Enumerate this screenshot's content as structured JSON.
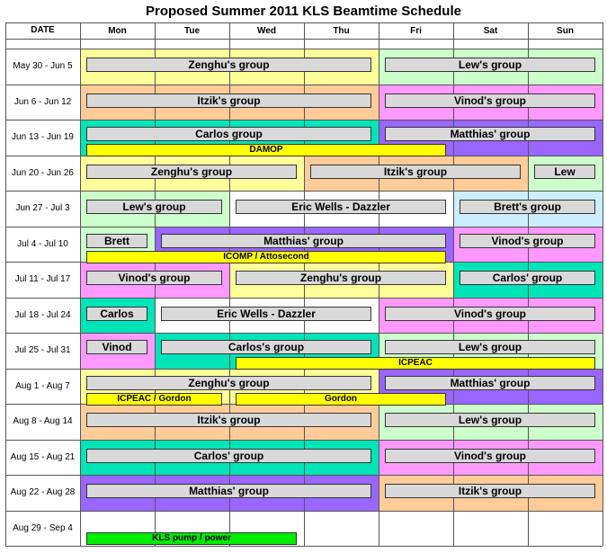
{
  "title": "Proposed Summer 2011 KLS Beamtime Schedule",
  "header": {
    "date": "DATE",
    "days": [
      "Mon",
      "Tue",
      "Wed",
      "Thu",
      "Fri",
      "Sat",
      "Sun"
    ]
  },
  "colors": {
    "yellow_bg": "#ffff99",
    "green_bg": "#ccffcc",
    "orange_bg": "#ffcc99",
    "pink_bg": "#ff99ff",
    "teal_bg": "#00e5b8",
    "purple_bg": "#9966ff",
    "lightblue_bg": "#cceeff",
    "bar_gray": "#d9d9d9",
    "bar_yellow": "#ffff00",
    "bar_green": "#00ee00"
  },
  "rows": [
    {
      "label": "May 30 - Jun 5",
      "bgs": [
        {
          "from": 0,
          "to": 4,
          "color": "yellow_bg"
        },
        {
          "from": 4,
          "to": 7,
          "color": "green_bg"
        }
      ],
      "bars": [
        {
          "text": "Zenghu's group",
          "from": 0,
          "to": 4,
          "line": 0,
          "kind": "gray"
        },
        {
          "text": "Lew's group",
          "from": 4,
          "to": 7,
          "line": 0,
          "kind": "gray"
        }
      ]
    },
    {
      "label": "Jun 6 - Jun 12",
      "bgs": [
        {
          "from": 0,
          "to": 4,
          "color": "orange_bg"
        },
        {
          "from": 4,
          "to": 7,
          "color": "pink_bg"
        }
      ],
      "bars": [
        {
          "text": "Itzik's group",
          "from": 0,
          "to": 4,
          "line": 0,
          "kind": "gray"
        },
        {
          "text": "Vinod's group",
          "from": 4,
          "to": 7,
          "line": 0,
          "kind": "gray"
        }
      ]
    },
    {
      "label": "Jun 13 - Jun 19",
      "bgs": [
        {
          "from": 0,
          "to": 4,
          "color": "teal_bg"
        },
        {
          "from": 4,
          "to": 7,
          "color": "purple_bg"
        }
      ],
      "bars": [
        {
          "text": "Carlos group",
          "from": 0,
          "to": 4,
          "line": 0,
          "kind": "gray"
        },
        {
          "text": "Matthias' group",
          "from": 4,
          "to": 7,
          "line": 0,
          "kind": "gray"
        },
        {
          "text": "DAMOP",
          "from": 0,
          "to": 5,
          "line": 1,
          "kind": "yellow"
        }
      ]
    },
    {
      "label": "Jun 20 - Jun 26",
      "bgs": [
        {
          "from": 0,
          "to": 3,
          "color": "yellow_bg"
        },
        {
          "from": 3,
          "to": 6,
          "color": "orange_bg"
        },
        {
          "from": 6,
          "to": 7,
          "color": "green_bg"
        }
      ],
      "bars": [
        {
          "text": "Zenghu's group",
          "from": 0,
          "to": 3,
          "line": 0,
          "kind": "gray"
        },
        {
          "text": "Itzik's group",
          "from": 3,
          "to": 6,
          "line": 0,
          "kind": "gray"
        },
        {
          "text": "Lew",
          "from": 6,
          "to": 7,
          "line": 0,
          "kind": "gray"
        }
      ]
    },
    {
      "label": "Jun 27 - Jul 3",
      "bgs": [
        {
          "from": 0,
          "to": 2,
          "color": "green_bg"
        },
        {
          "from": 2,
          "to": 5,
          "color": "white"
        },
        {
          "from": 5,
          "to": 7,
          "color": "lightblue_bg"
        }
      ],
      "bars": [
        {
          "text": "Lew's group",
          "from": 0,
          "to": 2,
          "line": 0,
          "kind": "gray"
        },
        {
          "text": "Eric Wells - Dazzler",
          "from": 2,
          "to": 5,
          "line": 0,
          "kind": "gray"
        },
        {
          "text": "Brett's group",
          "from": 5,
          "to": 7,
          "line": 0,
          "kind": "gray"
        }
      ]
    },
    {
      "label": "Jul 4 - Jul 10",
      "bgs": [
        {
          "from": 0,
          "to": 1,
          "color": "green_bg"
        },
        {
          "from": 1,
          "to": 5,
          "color": "purple_bg"
        },
        {
          "from": 5,
          "to": 7,
          "color": "pink_bg"
        }
      ],
      "bars": [
        {
          "text": "Brett",
          "from": 0,
          "to": 1,
          "line": 0,
          "kind": "gray"
        },
        {
          "text": "Matthias' group",
          "from": 1,
          "to": 5,
          "line": 0,
          "kind": "gray"
        },
        {
          "text": "Vinod's group",
          "from": 5,
          "to": 7,
          "line": 0,
          "kind": "gray"
        },
        {
          "text": "ICOMP / Attosecond",
          "from": 0,
          "to": 5,
          "line": 1,
          "kind": "yellow"
        }
      ]
    },
    {
      "label": "Jul 11 - Jul 17",
      "bgs": [
        {
          "from": 0,
          "to": 2,
          "color": "pink_bg"
        },
        {
          "from": 2,
          "to": 5,
          "color": "yellow_bg"
        },
        {
          "from": 5,
          "to": 7,
          "color": "teal_bg"
        }
      ],
      "bars": [
        {
          "text": "Vinod's group",
          "from": 0,
          "to": 2,
          "line": 0,
          "kind": "gray"
        },
        {
          "text": "Zenghu's group",
          "from": 2,
          "to": 5,
          "line": 0,
          "kind": "gray"
        },
        {
          "text": "Carlos' group",
          "from": 5,
          "to": 7,
          "line": 0,
          "kind": "gray"
        }
      ]
    },
    {
      "label": "Jul 18 - Jul 24",
      "bgs": [
        {
          "from": 0,
          "to": 1,
          "color": "teal_bg"
        },
        {
          "from": 1,
          "to": 4,
          "color": "white"
        },
        {
          "from": 4,
          "to": 7,
          "color": "pink_bg"
        }
      ],
      "bars": [
        {
          "text": "Carlos",
          "from": 0,
          "to": 1,
          "line": 0,
          "kind": "gray"
        },
        {
          "text": "Eric Wells - Dazzler",
          "from": 1,
          "to": 4,
          "line": 0,
          "kind": "gray"
        },
        {
          "text": "Vinod's group",
          "from": 4,
          "to": 7,
          "line": 0,
          "kind": "gray"
        }
      ]
    },
    {
      "label": "Jul 25 - Jul 31",
      "bgs": [
        {
          "from": 0,
          "to": 1,
          "color": "pink_bg"
        },
        {
          "from": 1,
          "to": 4,
          "color": "teal_bg"
        },
        {
          "from": 4,
          "to": 7,
          "color": "green_bg"
        }
      ],
      "bars": [
        {
          "text": "Vinod",
          "from": 0,
          "to": 1,
          "line": 0,
          "kind": "gray"
        },
        {
          "text": "Carlos's group",
          "from": 1,
          "to": 4,
          "line": 0,
          "kind": "gray"
        },
        {
          "text": "Lew's group",
          "from": 4,
          "to": 7,
          "line": 0,
          "kind": "gray"
        },
        {
          "text": "ICPEAC",
          "from": 2,
          "to": 7,
          "line": 1,
          "kind": "yellow"
        }
      ]
    },
    {
      "label": "Aug 1 - Aug 7",
      "bgs": [
        {
          "from": 0,
          "to": 4,
          "color": "yellow_bg"
        },
        {
          "from": 4,
          "to": 7,
          "color": "purple_bg"
        }
      ],
      "bars": [
        {
          "text": "Zenghu's group",
          "from": 0,
          "to": 4,
          "line": 0,
          "kind": "gray"
        },
        {
          "text": "Matthias' group",
          "from": 4,
          "to": 7,
          "line": 0,
          "kind": "gray"
        },
        {
          "text": "ICPEAC / Gordon",
          "from": 0,
          "to": 2,
          "line": 1,
          "kind": "yellow"
        },
        {
          "text": "Gordon",
          "from": 2,
          "to": 5,
          "line": 1,
          "kind": "yellow"
        }
      ]
    },
    {
      "label": "Aug 8 - Aug 14",
      "bgs": [
        {
          "from": 0,
          "to": 4,
          "color": "orange_bg"
        },
        {
          "from": 4,
          "to": 7,
          "color": "green_bg"
        }
      ],
      "bars": [
        {
          "text": "Itzik's group",
          "from": 0,
          "to": 4,
          "line": 0,
          "kind": "gray"
        },
        {
          "text": "Lew's group",
          "from": 4,
          "to": 7,
          "line": 0,
          "kind": "gray"
        }
      ]
    },
    {
      "label": "Aug 15 - Aug 21",
      "bgs": [
        {
          "from": 0,
          "to": 4,
          "color": "teal_bg"
        },
        {
          "from": 4,
          "to": 7,
          "color": "pink_bg"
        }
      ],
      "bars": [
        {
          "text": "Carlos' group",
          "from": 0,
          "to": 4,
          "line": 0,
          "kind": "gray"
        },
        {
          "text": "Vinod's group",
          "from": 4,
          "to": 7,
          "line": 0,
          "kind": "gray"
        }
      ]
    },
    {
      "label": "Aug 22 - Aug 28",
      "bgs": [
        {
          "from": 0,
          "to": 4,
          "color": "purple_bg"
        },
        {
          "from": 4,
          "to": 7,
          "color": "orange_bg"
        }
      ],
      "bars": [
        {
          "text": "Matthias' group",
          "from": 0,
          "to": 4,
          "line": 0,
          "kind": "gray"
        },
        {
          "text": "Itzik's group",
          "from": 4,
          "to": 7,
          "line": 0,
          "kind": "gray"
        }
      ]
    },
    {
      "label": "Aug 29 - Sep 4",
      "bgs": [],
      "bars": [
        {
          "text": "KLS  pump / power",
          "from": 0,
          "to": 3,
          "line": 1,
          "kind": "green"
        }
      ]
    }
  ]
}
